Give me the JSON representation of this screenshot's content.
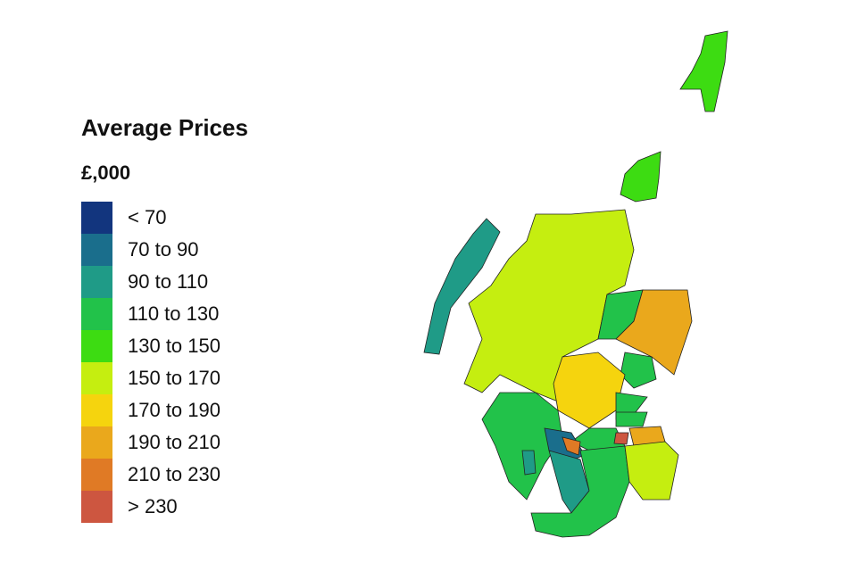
{
  "title": "Average Prices",
  "unit": "£,000",
  "legend": [
    {
      "label": "< 70",
      "color": "#12357e"
    },
    {
      "label": "70 to 90",
      "color": "#1a6e8c"
    },
    {
      "label": "90 to 110",
      "color": "#1f9b87"
    },
    {
      "label": "110 to 130",
      "color": "#22c24a"
    },
    {
      "label": "130 to 150",
      "color": "#3ddc12"
    },
    {
      "label": "150 to 170",
      "color": "#c5ee10"
    },
    {
      "label": "170 to 190",
      "color": "#f5d40e"
    },
    {
      "label": "190 to 210",
      "color": "#eaa81c"
    },
    {
      "label": "210 to 230",
      "color": "#e07a25"
    },
    {
      "label": "> 230",
      "color": "#cd5640"
    }
  ]
}
